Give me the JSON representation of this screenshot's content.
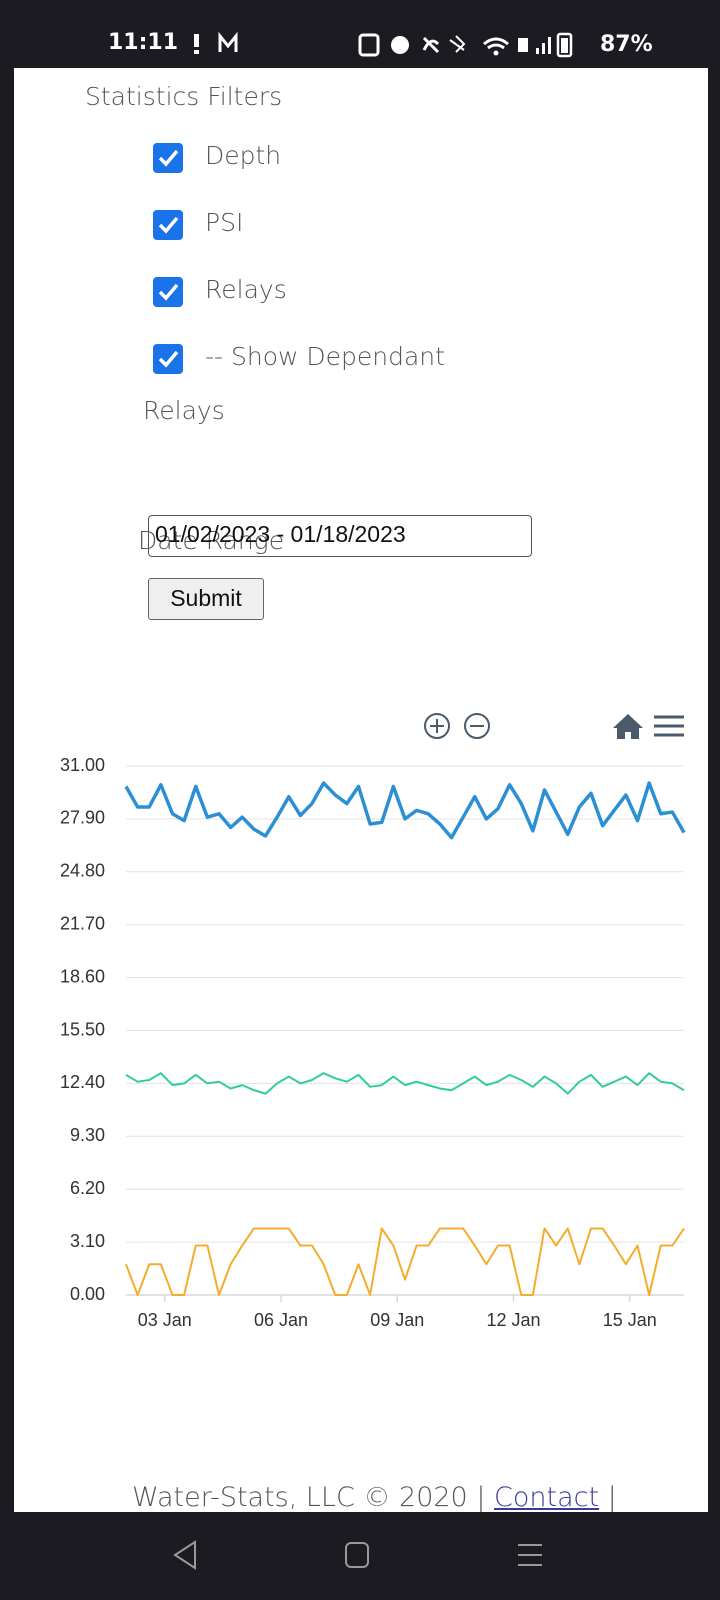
{
  "status_bar": {
    "time": "11:11",
    "battery": "87%"
  },
  "filters": {
    "title": "Statistics Filters",
    "options": [
      {
        "label": "Depth",
        "checked": true
      },
      {
        "label": "PSI",
        "checked": true
      },
      {
        "label": "Relays",
        "checked": true
      },
      {
        "label": "-- Show Dependant",
        "label_continued": "Relays",
        "checked": true
      }
    ]
  },
  "date_range": {
    "label": "Date Range",
    "value": "01/02/2023 - 01/18/2023"
  },
  "submit": "Submit",
  "chart_data": {
    "type": "line",
    "x": [
      2,
      2.3,
      2.6,
      2.9,
      3.2,
      3.5,
      3.8,
      4.1,
      4.4,
      4.7,
      5,
      5.3,
      5.6,
      5.9,
      6.2,
      6.5,
      6.8,
      7.1,
      7.4,
      7.7,
      8,
      8.3,
      8.6,
      8.9,
      9.2,
      9.5,
      9.8,
      10.1,
      10.4,
      10.7,
      11,
      11.3,
      11.6,
      11.9,
      12.2,
      12.5,
      12.8,
      13.1,
      13.4,
      13.7,
      14,
      14.3,
      14.6,
      14.9,
      15.2,
      15.5,
      15.8,
      16.1,
      16.4
    ],
    "xlim": [
      2,
      16.4
    ],
    "xticks": [
      {
        "value": 3,
        "label": "03 Jan"
      },
      {
        "value": 6,
        "label": "06 Jan"
      },
      {
        "value": 9,
        "label": "09 Jan"
      },
      {
        "value": 12,
        "label": "12 Jan"
      },
      {
        "value": 15,
        "label": "15 Jan"
      }
    ],
    "ylim": [
      0,
      31
    ],
    "yticks": [
      {
        "value": 0,
        "label": "0.00"
      },
      {
        "value": 3.1,
        "label": "3.10"
      },
      {
        "value": 6.2,
        "label": "6.20"
      },
      {
        "value": 9.3,
        "label": "9.30"
      },
      {
        "value": 12.4,
        "label": "12.40"
      },
      {
        "value": 15.5,
        "label": "15.50"
      },
      {
        "value": 18.6,
        "label": "18.60"
      },
      {
        "value": 21.7,
        "label": "21.70"
      },
      {
        "value": 24.8,
        "label": "24.80"
      },
      {
        "value": 27.9,
        "label": "27.90"
      },
      {
        "value": 31,
        "label": "31.00"
      }
    ],
    "grid": true,
    "series": [
      {
        "name": "Depth",
        "color": "#2b8fd6",
        "values": [
          29.8,
          28.6,
          28.6,
          29.9,
          28.2,
          27.8,
          29.8,
          28.0,
          28.2,
          27.4,
          28.0,
          27.3,
          26.9,
          28.0,
          29.2,
          28.1,
          28.8,
          30.0,
          29.3,
          28.8,
          29.8,
          27.6,
          27.7,
          29.8,
          27.9,
          28.4,
          28.2,
          27.6,
          26.8,
          28.0,
          29.2,
          27.9,
          28.5,
          29.9,
          28.8,
          27.2,
          29.6,
          28.3,
          27.0,
          28.6,
          29.4,
          27.5,
          28.4,
          29.3,
          27.8,
          30.0,
          28.2,
          28.3,
          27.1
        ]
      },
      {
        "name": "PSI",
        "color": "#2fcf95",
        "values": [
          12.9,
          12.5,
          12.6,
          13.0,
          12.3,
          12.4,
          12.9,
          12.4,
          12.5,
          12.1,
          12.3,
          12.0,
          11.8,
          12.4,
          12.8,
          12.4,
          12.6,
          13.0,
          12.7,
          12.5,
          12.9,
          12.2,
          12.3,
          12.8,
          12.3,
          12.5,
          12.3,
          12.1,
          12.0,
          12.4,
          12.8,
          12.3,
          12.5,
          12.9,
          12.6,
          12.2,
          12.8,
          12.4,
          11.8,
          12.5,
          12.9,
          12.2,
          12.5,
          12.8,
          12.3,
          13.0,
          12.5,
          12.4,
          12.0
        ]
      },
      {
        "name": "Relay",
        "color": "#f4ad2b",
        "values": [
          1.8,
          0,
          1.8,
          1.8,
          0,
          0,
          2.9,
          2.9,
          0,
          1.8,
          2.9,
          3.9,
          3.9,
          3.9,
          3.9,
          2.9,
          2.9,
          1.8,
          0,
          0,
          1.8,
          0,
          3.9,
          2.9,
          0.9,
          2.9,
          2.9,
          3.9,
          3.9,
          3.9,
          2.9,
          1.8,
          2.9,
          2.9,
          0,
          0,
          3.9,
          2.9,
          3.9,
          1.8,
          3.9,
          3.9,
          2.9,
          1.8,
          2.9,
          0,
          2.9,
          2.9,
          3.9
        ]
      }
    ]
  },
  "footer": {
    "text": "Water-Stats, LLC © 2020 |",
    "link": "Contact",
    "trail": "|"
  }
}
